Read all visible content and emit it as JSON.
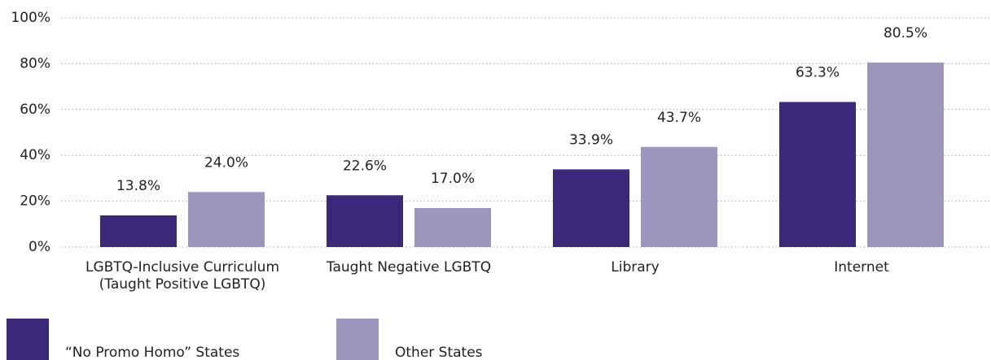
{
  "chart_data": {
    "type": "bar",
    "categories": [
      [
        "LGBTQ-Inclusive Curriculum",
        "(Taught Positive LGBTQ)"
      ],
      [
        "Taught Negative LGBTQ"
      ],
      [
        "Library"
      ],
      [
        "Internet"
      ]
    ],
    "series": [
      {
        "name": "“No Promo Homo” States",
        "color": "#3b2878",
        "values": [
          13.8,
          22.6,
          33.9,
          63.3
        ],
        "value_labels": [
          "13.8%",
          "22.6%",
          "33.9%",
          "63.3%"
        ]
      },
      {
        "name": "Other States",
        "color": "#9e95be",
        "values": [
          24.0,
          17.0,
          43.7,
          80.5
        ],
        "value_labels": [
          "24.0%",
          "17.0%",
          "43.7%",
          "80.5%"
        ]
      }
    ],
    "ylim": [
      0,
      100
    ],
    "yticks": [
      {
        "value": 0,
        "label": "0%"
      },
      {
        "value": 20,
        "label": "20%"
      },
      {
        "value": 40,
        "label": "40%"
      },
      {
        "value": 60,
        "label": "60%"
      },
      {
        "value": 80,
        "label": "80%"
      },
      {
        "value": 100,
        "label": "100%"
      }
    ],
    "grid": true
  }
}
